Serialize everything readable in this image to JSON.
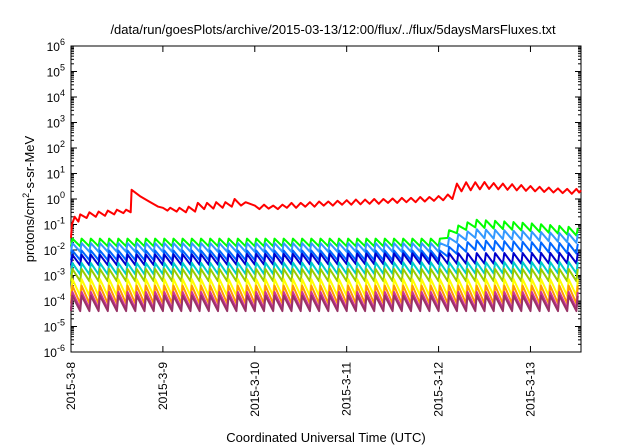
{
  "chart_data": {
    "type": "line",
    "title": "/data/run/goesPlots/archive/2015-03-13/12:00/flux/../flux/5daysMarsFluxes.txt",
    "xlabel": "Coordinated Universal Time (UTC)",
    "ylabel_parts": {
      "main": "protons/cm",
      "sup": "2",
      "rest": "-s-sr-MeV"
    },
    "y_scale": "log",
    "ylim_exponents": [
      -6,
      6
    ],
    "y_tick_base": "10",
    "y_tick_exponents": [
      "-6",
      "-5",
      "-4",
      "-3",
      "-2",
      "-1",
      "0",
      "1",
      "2",
      "3",
      "4",
      "5",
      "6"
    ],
    "x_ticks": [
      {
        "label": "2015-3-8",
        "day": 0
      },
      {
        "label": "2015-3-9",
        "day": 1
      },
      {
        "label": "2015-3-10",
        "day": 2
      },
      {
        "label": "2015-3-11",
        "day": 3
      },
      {
        "label": "2015-3-12",
        "day": 4
      },
      {
        "label": "2015-3-13",
        "day": 5
      }
    ],
    "x_range_days": [
      0,
      5.55
    ],
    "grid": false,
    "legend": "none",
    "series": [
      {
        "color": "#ff0000",
        "points": [
          [
            0.0,
            0.03
          ],
          [
            0.01,
            0.1
          ],
          [
            0.04,
            0.2
          ],
          [
            0.08,
            0.13
          ],
          [
            0.1,
            0.25
          ],
          [
            0.17,
            0.18
          ],
          [
            0.2,
            0.3
          ],
          [
            0.27,
            0.2
          ],
          [
            0.3,
            0.32
          ],
          [
            0.37,
            0.22
          ],
          [
            0.4,
            0.35
          ],
          [
            0.47,
            0.25
          ],
          [
            0.5,
            0.38
          ],
          [
            0.57,
            0.28
          ],
          [
            0.6,
            0.38
          ],
          [
            0.65,
            0.3
          ],
          [
            0.66,
            2.3
          ],
          [
            0.75,
            1.3
          ],
          [
            0.85,
            0.8
          ],
          [
            0.95,
            0.5
          ],
          [
            1.0,
            0.45
          ],
          [
            1.05,
            0.35
          ],
          [
            1.08,
            0.45
          ],
          [
            1.15,
            0.32
          ],
          [
            1.18,
            0.45
          ],
          [
            1.25,
            0.3
          ],
          [
            1.28,
            0.5
          ],
          [
            1.35,
            0.32
          ],
          [
            1.38,
            0.7
          ],
          [
            1.45,
            0.4
          ],
          [
            1.48,
            0.7
          ],
          [
            1.55,
            0.42
          ],
          [
            1.58,
            0.75
          ],
          [
            1.65,
            0.45
          ],
          [
            1.68,
            0.75
          ],
          [
            1.75,
            0.5
          ],
          [
            1.78,
            1.0
          ],
          [
            1.85,
            0.55
          ],
          [
            1.9,
            0.75
          ],
          [
            2.0,
            0.55
          ],
          [
            2.05,
            0.4
          ],
          [
            2.1,
            0.6
          ],
          [
            2.15,
            0.42
          ],
          [
            2.2,
            0.55
          ],
          [
            2.25,
            0.4
          ],
          [
            2.3,
            0.6
          ],
          [
            2.35,
            0.45
          ],
          [
            2.4,
            0.7
          ],
          [
            2.45,
            0.45
          ],
          [
            2.5,
            0.7
          ],
          [
            2.55,
            0.5
          ],
          [
            2.6,
            0.75
          ],
          [
            2.65,
            0.5
          ],
          [
            2.7,
            0.8
          ],
          [
            2.75,
            0.55
          ],
          [
            2.8,
            0.8
          ],
          [
            2.85,
            0.55
          ],
          [
            2.9,
            0.85
          ],
          [
            2.95,
            0.6
          ],
          [
            3.0,
            0.9
          ],
          [
            3.05,
            0.6
          ],
          [
            3.1,
            0.95
          ],
          [
            3.15,
            0.62
          ],
          [
            3.2,
            0.95
          ],
          [
            3.25,
            0.65
          ],
          [
            3.3,
            1.0
          ],
          [
            3.35,
            0.65
          ],
          [
            3.4,
            1.0
          ],
          [
            3.45,
            0.7
          ],
          [
            3.5,
            1.05
          ],
          [
            3.55,
            0.7
          ],
          [
            3.6,
            1.1
          ],
          [
            3.65,
            0.75
          ],
          [
            3.7,
            1.1
          ],
          [
            3.75,
            0.75
          ],
          [
            3.8,
            1.2
          ],
          [
            3.85,
            0.8
          ],
          [
            3.9,
            1.2
          ],
          [
            3.95,
            0.85
          ],
          [
            4.0,
            1.3
          ],
          [
            4.05,
            0.9
          ],
          [
            4.1,
            1.5
          ],
          [
            4.15,
            1.0
          ],
          [
            4.2,
            4.0
          ],
          [
            4.25,
            2.0
          ],
          [
            4.3,
            4.5
          ],
          [
            4.35,
            2.2
          ],
          [
            4.4,
            4.5
          ],
          [
            4.45,
            2.4
          ],
          [
            4.5,
            4.6
          ],
          [
            4.55,
            2.5
          ],
          [
            4.6,
            4.2
          ],
          [
            4.65,
            2.4
          ],
          [
            4.7,
            4.0
          ],
          [
            4.75,
            2.3
          ],
          [
            4.8,
            3.8
          ],
          [
            4.85,
            2.2
          ],
          [
            4.9,
            3.5
          ],
          [
            4.95,
            2.1
          ],
          [
            5.0,
            3.2
          ],
          [
            5.05,
            2.0
          ],
          [
            5.1,
            3.0
          ],
          [
            5.15,
            1.9
          ],
          [
            5.2,
            2.8
          ],
          [
            5.25,
            1.8
          ],
          [
            5.3,
            2.6
          ],
          [
            5.35,
            1.7
          ],
          [
            5.4,
            2.5
          ],
          [
            5.45,
            1.6
          ],
          [
            5.5,
            2.5
          ],
          [
            5.53,
            1.8
          ],
          [
            5.55,
            2.2
          ]
        ]
      },
      {
        "color": "#00ff00",
        "zigzag": {
          "start": 0.0,
          "end": 5.55,
          "period": 0.1,
          "base": 0.014,
          "amp": 2.0,
          "trend": [
            [
              0,
              1
            ],
            [
              4.0,
              1
            ],
            [
              4.4,
              5.5
            ],
            [
              5.55,
              2.5
            ]
          ]
        }
      },
      {
        "color": "#3399ff",
        "zigzag": {
          "start": 0.0,
          "end": 5.55,
          "period": 0.1,
          "base": 0.0085,
          "amp": 2.2,
          "trend": [
            [
              0,
              1
            ],
            [
              4.0,
              1
            ],
            [
              4.4,
              3.5
            ],
            [
              5.55,
              2.2
            ]
          ]
        }
      },
      {
        "color": "#0066ff",
        "zigzag": {
          "start": 0.0,
          "end": 5.55,
          "period": 0.1,
          "base": 0.004,
          "amp": 2.4,
          "trend": [
            [
              0,
              1
            ],
            [
              4.0,
              1
            ],
            [
              4.4,
              2.5
            ],
            [
              5.55,
              1.8
            ]
          ]
        }
      },
      {
        "color": "#0000cc",
        "zigzag": {
          "start": 0.0,
          "end": 5.55,
          "period": 0.1,
          "base": 0.0025,
          "amp": 2.6,
          "trend": [
            [
              0,
              1
            ],
            [
              5.55,
              1.2
            ]
          ]
        }
      },
      {
        "color": "#00cccc",
        "zigzag": {
          "start": 0.0,
          "end": 5.55,
          "period": 0.1,
          "base": 0.0011,
          "amp": 2.8,
          "trend": [
            [
              0,
              1
            ],
            [
              5.55,
              1.1
            ]
          ]
        }
      },
      {
        "color": "#99cc00",
        "zigzag": {
          "start": 0.0,
          "end": 5.55,
          "period": 0.1,
          "base": 0.0006,
          "amp": 3.0,
          "trend": [
            [
              0,
              1
            ],
            [
              5.55,
              1.0
            ]
          ]
        }
      },
      {
        "color": "#ffff00",
        "zigzag": {
          "start": 0.0,
          "end": 5.55,
          "period": 0.1,
          "base": 0.00016,
          "amp": 4.5,
          "trend": [
            [
              0,
              1
            ],
            [
              5.55,
              1.0
            ]
          ]
        }
      },
      {
        "color": "#ff9900",
        "zigzag": {
          "start": 0.0,
          "end": 5.55,
          "period": 0.1,
          "base": 8e-05,
          "amp": 5.0,
          "trend": [
            [
              0,
              1
            ],
            [
              5.55,
              1.0
            ]
          ]
        }
      },
      {
        "color": "#cc3399",
        "zigzag": {
          "start": 0.0,
          "end": 5.55,
          "period": 0.1,
          "base": 5e-05,
          "amp": 4.5,
          "trend": [
            [
              0,
              1
            ],
            [
              5.55,
              1.0
            ]
          ]
        }
      },
      {
        "color": "#993366",
        "zigzag": {
          "start": 0.0,
          "end": 5.55,
          "period": 0.1,
          "base": 4e-05,
          "amp": 4.0,
          "trend": [
            [
              0,
              1
            ],
            [
              5.55,
              1.0
            ]
          ]
        }
      }
    ]
  }
}
